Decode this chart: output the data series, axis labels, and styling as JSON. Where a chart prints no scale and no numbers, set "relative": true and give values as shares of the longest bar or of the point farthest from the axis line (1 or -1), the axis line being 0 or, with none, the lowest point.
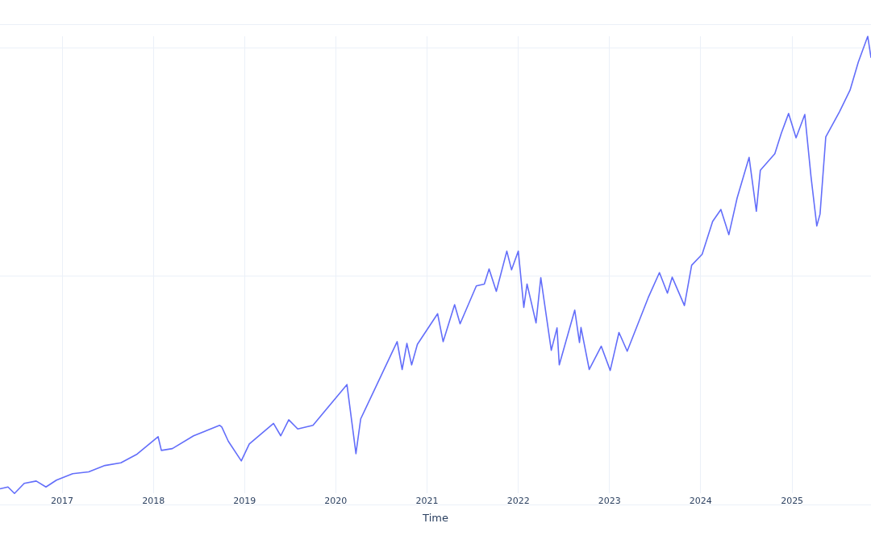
{
  "chart_data": {
    "type": "line",
    "xlabel": "Time",
    "relative": true,
    "grid": true,
    "tick_labels": "x",
    "legend": false,
    "marker": "none",
    "line_style": "solid",
    "xlim": [
      "2016-04-27",
      "2025-11-13"
    ],
    "xticks": [
      "2017",
      "2018",
      "2019",
      "2020",
      "2021",
      "2022",
      "2023",
      "2024",
      "2025"
    ],
    "series": [
      {
        "color": "#636efa",
        "x": [
          "2016-04-27",
          "2016-05-29",
          "2016-06-24",
          "2016-08-02",
          "2016-09-19",
          "2016-10-28",
          "2016-12-09",
          "2017-02-12",
          "2017-04-17",
          "2017-06-21",
          "2017-08-24",
          "2017-10-28",
          "2018-01-20",
          "2018-02-02",
          "2018-03-18",
          "2018-06-11",
          "2018-09-23",
          "2018-10-02",
          "2018-10-28",
          "2018-12-19",
          "2019-01-20",
          "2019-04-27",
          "2019-05-26",
          "2019-06-27",
          "2019-08-02",
          "2019-10-02",
          "2020-02-15",
          "2020-03-22",
          "2020-04-10",
          "2020-06-14",
          "2020-09-03",
          "2020-09-23",
          "2020-10-12",
          "2020-10-31",
          "2020-11-23",
          "2021-02-12",
          "2021-03-06",
          "2021-04-21",
          "2021-05-13",
          "2021-07-17",
          "2021-08-18",
          "2021-09-06",
          "2021-10-05",
          "2021-11-16",
          "2021-12-05",
          "2022-01-01",
          "2022-01-23",
          "2022-02-05",
          "2022-03-13",
          "2022-04-01",
          "2022-05-13",
          "2022-06-05",
          "2022-06-14",
          "2022-08-15",
          "2022-09-03",
          "2022-09-09",
          "2022-10-12",
          "2022-11-29",
          "2023-01-04",
          "2023-02-08",
          "2023-03-13",
          "2023-06-05",
          "2023-07-20",
          "2023-08-21",
          "2023-09-09",
          "2023-10-28",
          "2023-11-26",
          "2024-01-07",
          "2024-02-18",
          "2024-03-22",
          "2024-04-23",
          "2024-05-26",
          "2024-07-13",
          "2024-08-11",
          "2024-08-27",
          "2024-10-24",
          "2024-11-19",
          "2024-12-18",
          "2025-01-17",
          "2025-02-21",
          "2025-03-18",
          "2025-04-10",
          "2025-04-23",
          "2025-05-16",
          "2025-07-10",
          "2025-08-21",
          "2025-09-23",
          "2025-10-31",
          "2025-11-13"
        ],
        "values": [
          0.01,
          0.014,
          0.0,
          0.022,
          0.027,
          0.014,
          0.029,
          0.043,
          0.047,
          0.061,
          0.067,
          0.086,
          0.124,
          0.094,
          0.098,
          0.126,
          0.149,
          0.145,
          0.114,
          0.071,
          0.108,
          0.153,
          0.126,
          0.161,
          0.141,
          0.149,
          0.238,
          0.087,
          0.163,
          0.238,
          0.332,
          0.271,
          0.328,
          0.281,
          0.326,
          0.393,
          0.332,
          0.413,
          0.371,
          0.454,
          0.458,
          0.491,
          0.442,
          0.53,
          0.489,
          0.53,
          0.407,
          0.458,
          0.373,
          0.472,
          0.313,
          0.362,
          0.281,
          0.401,
          0.33,
          0.363,
          0.271,
          0.322,
          0.269,
          0.352,
          0.311,
          0.428,
          0.483,
          0.438,
          0.473,
          0.411,
          0.499,
          0.523,
          0.595,
          0.621,
          0.566,
          0.646,
          0.735,
          0.617,
          0.707,
          0.743,
          0.788,
          0.831,
          0.778,
          0.829,
          0.692,
          0.585,
          0.611,
          0.78,
          0.835,
          0.882,
          0.943,
          1.0,
          0.953
        ]
      }
    ]
  }
}
